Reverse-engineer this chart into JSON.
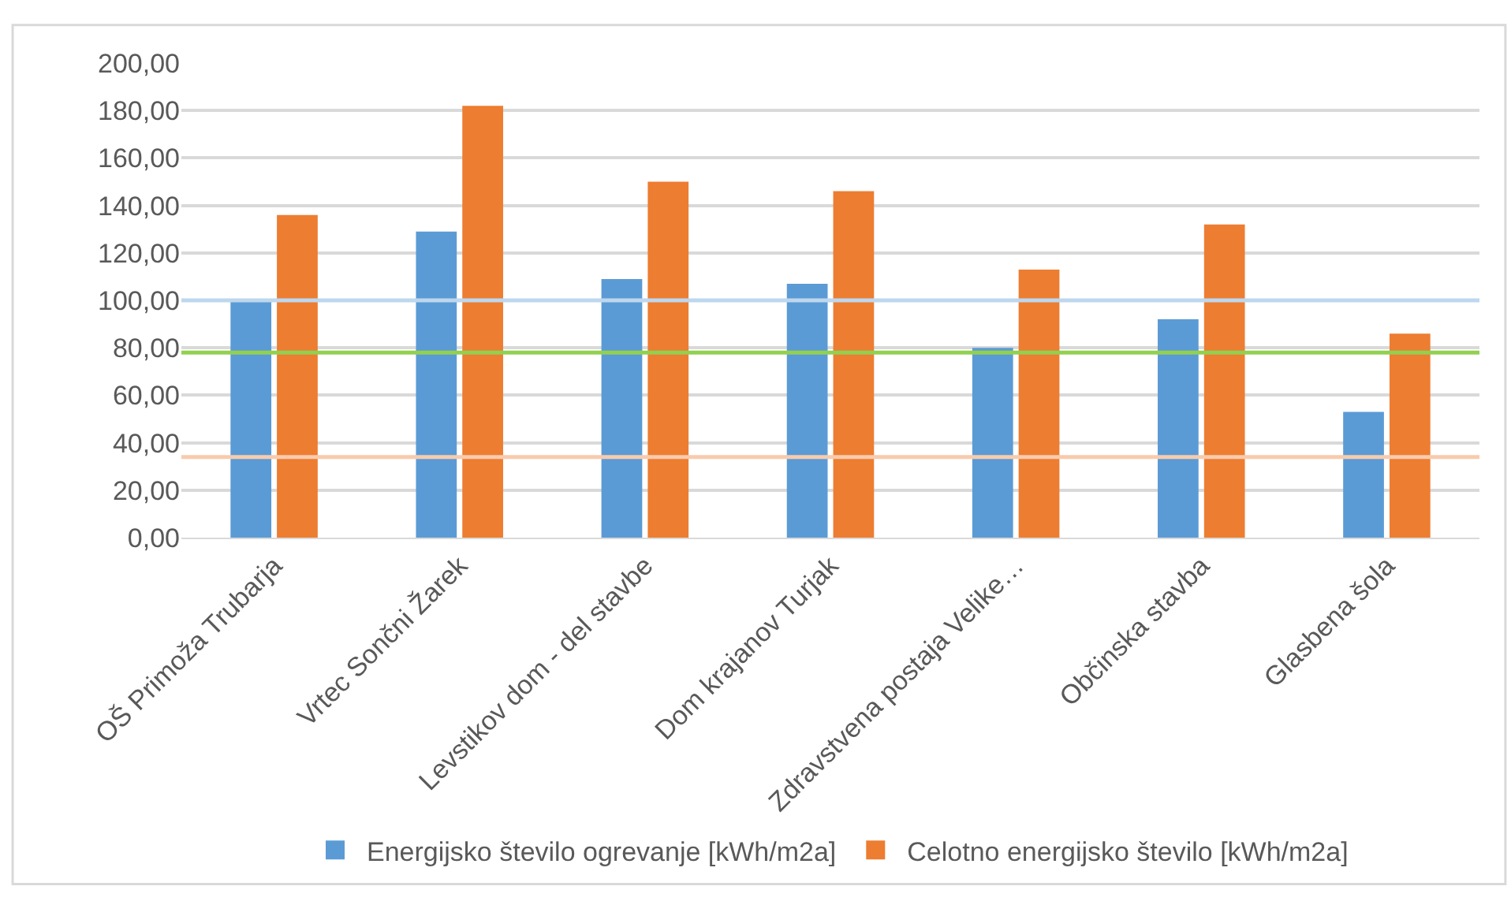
{
  "chart_data": {
    "type": "bar",
    "categories": [
      "OŠ Primoža Trubarja",
      "Vrtec Sončni Žarek",
      "Levstikov dom - del stavbe",
      "Dom krajanov Turjak",
      "Zdravstvena postaja Velike…",
      "Občinska stavba",
      "Glasbena šola"
    ],
    "series": [
      {
        "name": "Energijsko število ogrevanje [kWh/m2a]",
        "color": "#5b9bd5",
        "values": [
          100,
          129,
          109,
          107,
          80,
          92,
          53
        ]
      },
      {
        "name": "Celotno energijsko število [kWh/m2a]",
        "color": "#ed7d31",
        "values": [
          136,
          182,
          150,
          146,
          113,
          132,
          86
        ]
      }
    ],
    "ylim": [
      0,
      200
    ],
    "yticks": [
      {
        "value": 0,
        "label": "0,00"
      },
      {
        "value": 20,
        "label": "20,00"
      },
      {
        "value": 40,
        "label": "40,00"
      },
      {
        "value": 60,
        "label": "60,00"
      },
      {
        "value": 80,
        "label": "80,00"
      },
      {
        "value": 100,
        "label": "100,00"
      },
      {
        "value": 120,
        "label": "120,00"
      },
      {
        "value": 140,
        "label": "140,00"
      },
      {
        "value": 160,
        "label": "160,00"
      },
      {
        "value": 180,
        "label": "180,00"
      },
      {
        "value": 200,
        "label": "200,00"
      }
    ],
    "ref_lines": [
      {
        "axis": "y",
        "value": 100,
        "color": "#bdd7ee"
      },
      {
        "axis": "y",
        "value": 78,
        "color": "#92d050"
      },
      {
        "axis": "y",
        "value": 34,
        "color": "#f8cbad"
      }
    ],
    "grid": "y",
    "legend": "bottom"
  }
}
